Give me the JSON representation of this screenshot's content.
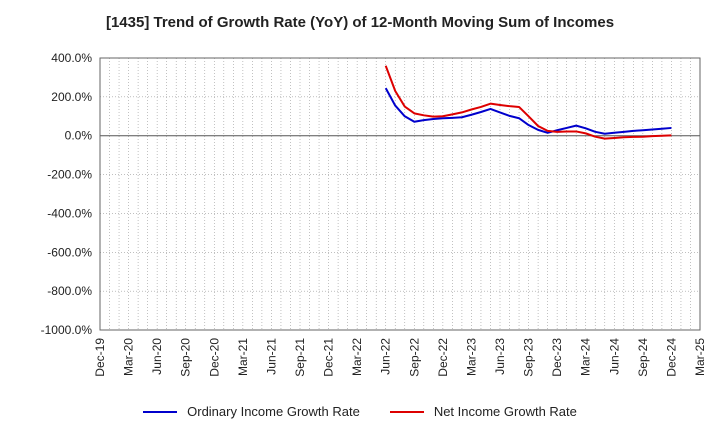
{
  "chart_data": {
    "type": "line",
    "title": "[1435]  Trend of Growth Rate (YoY) of 12-Month Moving Sum of Incomes",
    "xlabel": "",
    "ylabel": "",
    "ylim": [
      -1000,
      400
    ],
    "yticks": [
      400,
      200,
      0,
      -200,
      -400,
      -600,
      -800,
      -1000
    ],
    "ytick_labels": [
      "400.0%",
      "200.0%",
      "0.0%",
      "-200.0%",
      "-400.0%",
      "-600.0%",
      "-800.0%",
      "-1000.0%"
    ],
    "x_tick_labels": [
      "Dec-19",
      "Mar-20",
      "Jun-20",
      "Sep-20",
      "Dec-20",
      "Mar-21",
      "Jun-21",
      "Sep-21",
      "Dec-21",
      "Mar-22",
      "Jun-22",
      "Sep-22",
      "Dec-22",
      "Mar-23",
      "Jun-23",
      "Sep-23",
      "Dec-23",
      "Mar-24",
      "Jun-24",
      "Sep-24",
      "Dec-24",
      "Mar-25"
    ],
    "x_start_month_index": 0,
    "x_end_month_index": 63,
    "grid": true,
    "legend_position": "bottom",
    "series": [
      {
        "name": "Ordinary Income Growth Rate",
        "color": "#0000cc",
        "x": [
          30,
          31,
          32,
          33,
          34,
          35,
          36,
          37,
          38,
          39,
          40,
          41,
          42,
          43,
          44,
          45,
          46,
          47,
          48,
          49,
          50,
          51,
          52,
          53,
          54,
          55,
          56,
          57,
          58,
          59,
          60
        ],
        "values": [
          245,
          155,
          100,
          72,
          80,
          86,
          90,
          92,
          95,
          108,
          122,
          138,
          120,
          102,
          90,
          55,
          30,
          15,
          28,
          40,
          52,
          38,
          20,
          10,
          15,
          20,
          25,
          28,
          32,
          36,
          40
        ]
      },
      {
        "name": "Net Income Growth Rate",
        "color": "#dd0000",
        "x": [
          30,
          31,
          32,
          33,
          34,
          35,
          36,
          37,
          38,
          39,
          40,
          41,
          42,
          43,
          44,
          45,
          46,
          47,
          48,
          49,
          50,
          51,
          52,
          53,
          54,
          55,
          56,
          57,
          58,
          59,
          60
        ],
        "values": [
          360,
          230,
          150,
          115,
          105,
          98,
          100,
          110,
          120,
          135,
          148,
          165,
          158,
          152,
          148,
          100,
          50,
          25,
          20,
          22,
          22,
          12,
          -5,
          -15,
          -12,
          -8,
          -6,
          -5,
          -2,
          0,
          2
        ]
      }
    ]
  }
}
